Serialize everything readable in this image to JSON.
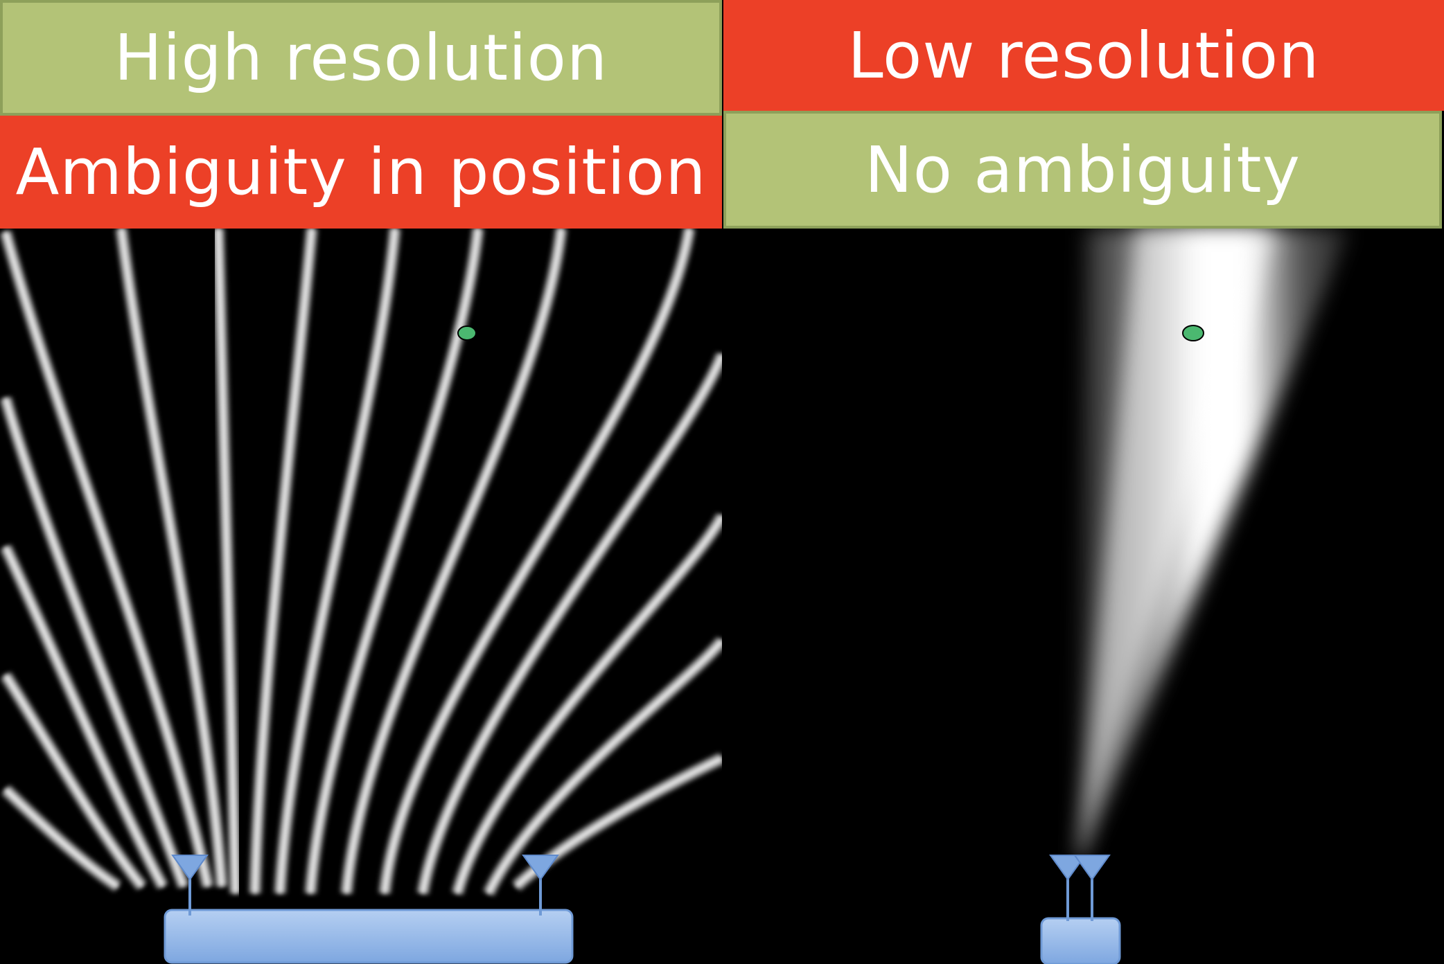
{
  "left_panel": {
    "resolution_label": "High resolution",
    "ambiguity_label": "Ambiguity in position"
  },
  "right_panel": {
    "resolution_label": "Low resolution",
    "ambiguity_label": "No ambiguity"
  },
  "colors": {
    "good": "#b3c377",
    "bad": "#ec4027",
    "good_border": "#8da05a",
    "background": "#000000",
    "beam": "#ffffff",
    "target": "#4bb870",
    "device": "#8db3e6",
    "antenna": "#6f9ad6"
  },
  "icons": {
    "antenna": "triangle-antenna-icon",
    "target": "green-dot-icon",
    "device": "rounded-rect-device-icon"
  }
}
